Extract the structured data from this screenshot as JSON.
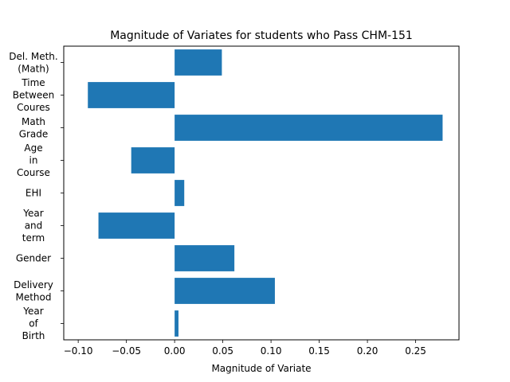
{
  "chart_data": {
    "type": "bar",
    "orientation": "horizontal",
    "title": "Magnitude of Variates for students who Pass CHM-151",
    "xlabel": "Magnitude of Variate",
    "ylabel": "",
    "xlim": [
      -0.115,
      0.295
    ],
    "x_ticks": [
      -0.1,
      -0.05,
      0.0,
      0.05,
      0.1,
      0.15,
      0.2,
      0.25
    ],
    "x_tick_labels": [
      "−0.10",
      "−0.05",
      "0.00",
      "0.05",
      "0.10",
      "0.15",
      "0.20",
      "0.25"
    ],
    "categories": [
      "Year\nof\nBirth",
      "Delivery\nMethod",
      "Gender",
      "Year\nand\nterm",
      "EHI",
      "Age\nin\nCourse",
      "Math\nGrade",
      "Time\nBetween\nCoures",
      "Del. Meth.\n(Math)"
    ],
    "values": [
      0.004,
      0.104,
      0.062,
      -0.079,
      0.01,
      -0.045,
      0.278,
      -0.09,
      0.049
    ],
    "bar_color": "#1f77b4",
    "grid": false,
    "legend": "none"
  }
}
